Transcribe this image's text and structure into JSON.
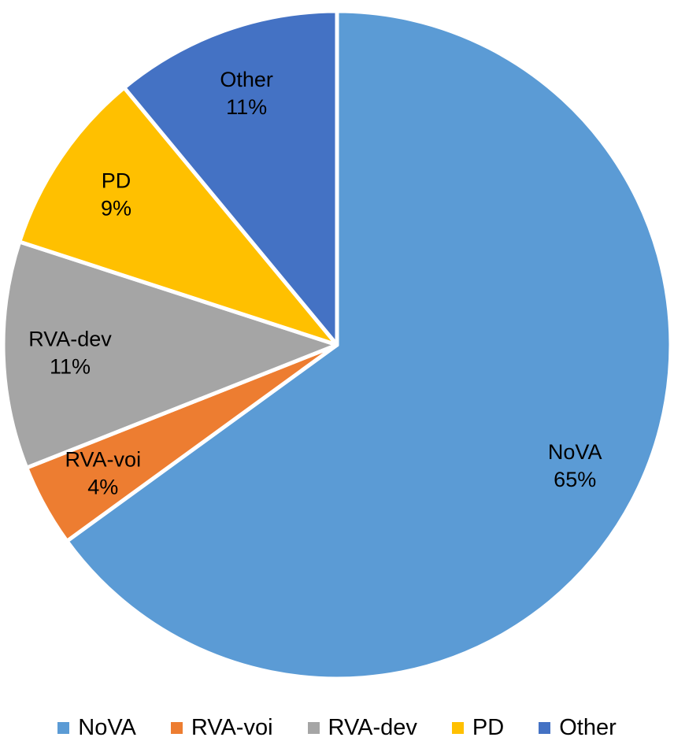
{
  "chart_data": {
    "type": "pie",
    "categories": [
      "NoVA",
      "RVA-voi",
      "RVA-dev",
      "PD",
      "Other"
    ],
    "values": [
      65,
      4,
      11,
      9,
      11
    ],
    "value_suffix": "%",
    "colors": [
      "#5B9BD5",
      "#ED7D31",
      "#A5A5A5",
      "#FFC000",
      "#4472C4"
    ],
    "title": "",
    "start_angle": 0,
    "direction": "clockwise",
    "slice_border_color": "#FFFFFF",
    "data_labels": "category and percent, inside slices",
    "legend_position": "bottom",
    "legend_entries": [
      "NoVA",
      "RVA-voi",
      "RVA-dev",
      "PD",
      "Other"
    ]
  }
}
